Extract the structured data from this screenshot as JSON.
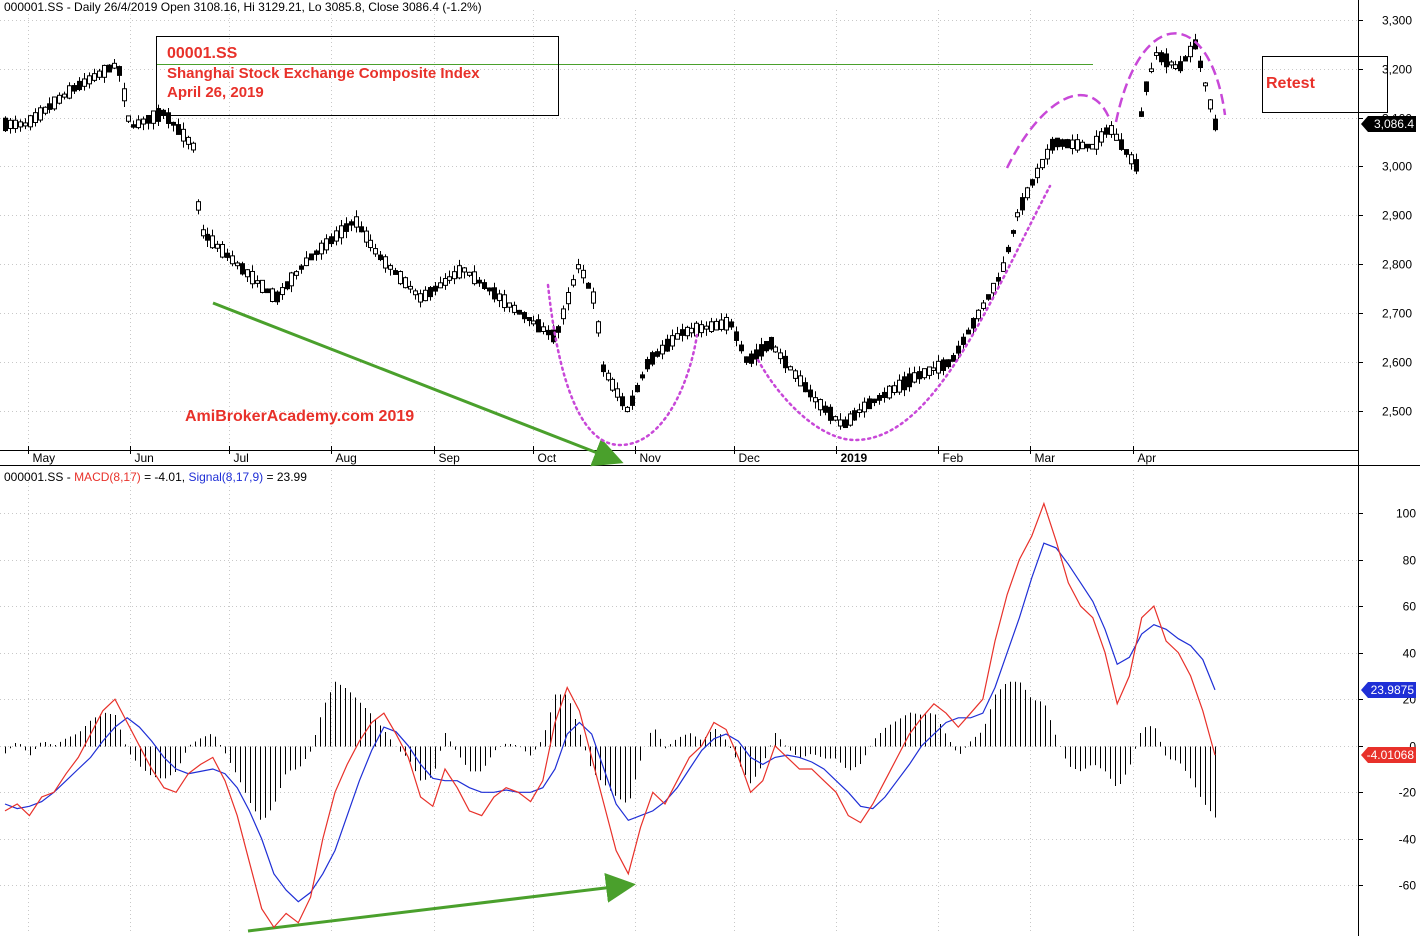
{
  "price_header": {
    "symbol": "000001.SS",
    "text": " - Daily 26/4/2019 Open 3108.16, Hi 3129.21, Lo 3085.8, Close 3086.4 (-1.2%)"
  },
  "macd_header": {
    "symbol": "000001.SS - ",
    "macd_label": "MACD(8,17)",
    "macd_value": " = -4.01, ",
    "signal_label": "Signal(8,17,9)",
    "signal_value": " = 23.99"
  },
  "annotation_box": {
    "line1": "00001.SS",
    "line2": "Shanghai Stock Exchange Composite Index",
    "line3": "April 26, 2019"
  },
  "retest_label": "Retest",
  "brand_label": "AmiBrokerAcademy.com  2019",
  "last_price_tag": "3,086.4",
  "macd_tag": "-4.01068",
  "signal_tag": "23.9875",
  "colors": {
    "macd": "#e8312a",
    "signal": "#1f2fd6",
    "trend_arrow": "#4aa02c",
    "pattern": "#c848d8",
    "resistance": "#4aa02c",
    "last_price_tag_bg": "#000000",
    "macd_tag_bg": "#e8312a",
    "signal_tag_bg": "#1f2fd6"
  },
  "chart_data": [
    {
      "type": "candlestick",
      "series": [
        {
          "name": "000001.SS"
        }
      ],
      "x_months": [
        "May",
        "Jun",
        "Jul",
        "Aug",
        "Sep",
        "Oct",
        "Nov",
        "Dec",
        "2019",
        "Feb",
        "Mar",
        "Apr"
      ],
      "y_ticks": [
        "3,300",
        "3,200",
        "3,100",
        "3,000",
        "2,900",
        "2,800",
        "2,700",
        "2,600",
        "2,500"
      ],
      "ylim": [
        2420,
        3320
      ],
      "last_close": 3086.4,
      "resistance_level": 3210,
      "shape_points": [
        [
          "May-01",
          3090
        ],
        [
          "May-15",
          3160
        ],
        [
          "May-28",
          3210
        ],
        [
          "Jun-01",
          3080
        ],
        [
          "Jun-11",
          3110
        ],
        [
          "Jun-20",
          3040
        ],
        [
          "Jun-22",
          2870
        ],
        [
          "Jul-05",
          2790
        ],
        [
          "Jul-15",
          2730
        ],
        [
          "Jul-25",
          2810
        ],
        [
          "Aug-08",
          2890
        ],
        [
          "Aug-15",
          2820
        ],
        [
          "Aug-28",
          2730
        ],
        [
          "Sep-10",
          2790
        ],
        [
          "Sep-25",
          2710
        ],
        [
          "Oct-08",
          2650
        ],
        [
          "Oct-15",
          2800
        ],
        [
          "Oct-20",
          2720
        ],
        [
          "Oct-22",
          2590
        ],
        [
          "Oct-30",
          2500
        ],
        [
          "Nov-05",
          2600
        ],
        [
          "Nov-15",
          2660
        ],
        [
          "Nov-30",
          2680
        ],
        [
          "Dec-05",
          2600
        ],
        [
          "Dec-12",
          2640
        ],
        [
          "Dec-26",
          2520
        ],
        [
          "Jan-03",
          2470
        ],
        [
          "Jan-10",
          2510
        ],
        [
          "Jan-25",
          2570
        ],
        [
          "Feb-05",
          2600
        ],
        [
          "Feb-20",
          2780
        ],
        [
          "Feb-25",
          2900
        ],
        [
          "Mar-01",
          2960
        ],
        [
          "Mar-08",
          3050
        ],
        [
          "Mar-20",
          3040
        ],
        [
          "Mar-25",
          3080
        ],
        [
          "Mar-29",
          3040
        ],
        [
          "Apr-02",
          3000
        ],
        [
          "Apr-04",
          3140
        ],
        [
          "Apr-08",
          3230
        ],
        [
          "Apr-15",
          3200
        ],
        [
          "Apr-20",
          3250
        ],
        [
          "Apr-26",
          3086
        ]
      ]
    },
    {
      "type": "line",
      "title": "MACD(8,17)",
      "y_ticks": [
        100,
        80,
        60,
        40,
        20,
        0,
        -20,
        -40,
        -60
      ],
      "ylim": [
        -80,
        112
      ],
      "series": [
        {
          "name": "MACD(8,17)",
          "values": [
            -28,
            -25,
            -30,
            -22,
            -20,
            -12,
            -5,
            5,
            15,
            20,
            10,
            0,
            -10,
            -18,
            -20,
            -12,
            -8,
            -5,
            -15,
            -30,
            -50,
            -70,
            -78,
            -72,
            -76,
            -65,
            -40,
            -20,
            -8,
            2,
            10,
            14,
            5,
            -5,
            -22,
            -26,
            -10,
            -18,
            -28,
            -30,
            -22,
            -18,
            -20,
            -24,
            -15,
            10,
            25,
            15,
            -5,
            -25,
            -45,
            -55,
            -35,
            -20,
            -25,
            -15,
            -5,
            0,
            10,
            7,
            -5,
            -20,
            -15,
            0,
            -5,
            -10,
            -10,
            -15,
            -20,
            -30,
            -33,
            -25,
            -15,
            -5,
            5,
            12,
            18,
            14,
            8,
            14,
            20,
            45,
            65,
            80,
            90,
            104,
            88,
            70,
            60,
            55,
            40,
            18,
            30,
            55,
            60,
            45,
            40,
            30,
            15,
            -4
          ]
        },
        {
          "name": "Signal(8,17,9)",
          "values": [
            -25,
            -27,
            -26,
            -24,
            -20,
            -15,
            -10,
            -5,
            2,
            8,
            12,
            8,
            2,
            -5,
            -10,
            -12,
            -11,
            -10,
            -12,
            -18,
            -28,
            -40,
            -55,
            -62,
            -67,
            -63,
            -55,
            -45,
            -30,
            -15,
            -2,
            8,
            6,
            0,
            -8,
            -14,
            -15,
            -15,
            -18,
            -20,
            -20,
            -19,
            -20,
            -20,
            -18,
            -10,
            5,
            10,
            5,
            -10,
            -25,
            -32,
            -30,
            -28,
            -24,
            -18,
            -10,
            -2,
            3,
            5,
            2,
            -5,
            -8,
            -5,
            -4,
            -5,
            -7,
            -10,
            -15,
            -20,
            -26,
            -27,
            -22,
            -15,
            -8,
            0,
            5,
            10,
            12,
            12,
            14,
            25,
            40,
            55,
            72,
            87,
            85,
            78,
            70,
            62,
            50,
            35,
            38,
            48,
            52,
            50,
            46,
            43,
            37,
            24
          ]
        }
      ]
    }
  ]
}
